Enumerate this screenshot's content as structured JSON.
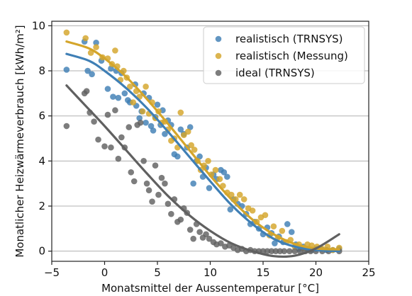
{
  "chart_data": {
    "type": "scatter",
    "xlabel": "Monatsmittel der Aussentemperatur [°C]",
    "ylabel": "Monatlicher Heizwärmeverbrauch [kWh/m²]",
    "xlim": [
      -5,
      25
    ],
    "ylim": [
      -0.45,
      10.2
    ],
    "x_ticks": [
      -5,
      0,
      5,
      10,
      15,
      20,
      25
    ],
    "x_tick_labels": [
      "−5",
      "0",
      "5",
      "10",
      "15",
      "20",
      "25"
    ],
    "y_ticks": [
      0,
      2,
      4,
      6,
      8,
      10
    ],
    "y_tick_labels": [
      "0",
      "2",
      "4",
      "6",
      "8",
      "10"
    ],
    "grid": "horizontal",
    "legend_position": "top-right",
    "series": [
      {
        "name": "realistisch (TRNSYS)",
        "color": "#3f7fb5",
        "points": [
          [
            -3.6,
            8.05
          ],
          [
            -1.9,
            9.3
          ],
          [
            -1.6,
            8.0
          ],
          [
            -1.2,
            7.85
          ],
          [
            -0.8,
            9.25
          ],
          [
            -0.3,
            8.45
          ],
          [
            0.3,
            7.2
          ],
          [
            0.6,
            8.1
          ],
          [
            0.8,
            6.85
          ],
          [
            1.1,
            8.0
          ],
          [
            1.3,
            6.8
          ],
          [
            1.6,
            7.9
          ],
          [
            1.9,
            7.0
          ],
          [
            2.2,
            6.7
          ],
          [
            2.4,
            6.6
          ],
          [
            2.9,
            7.4
          ],
          [
            3.0,
            6.45
          ],
          [
            3.3,
            5.9
          ],
          [
            3.5,
            6.2
          ],
          [
            3.7,
            7.0
          ],
          [
            3.9,
            5.7
          ],
          [
            4.2,
            6.8
          ],
          [
            4.4,
            5.55
          ],
          [
            4.6,
            5.35
          ],
          [
            4.8,
            5.95
          ],
          [
            5.0,
            6.5
          ],
          [
            5.3,
            5.6
          ],
          [
            5.5,
            6.25
          ],
          [
            5.7,
            5.2
          ],
          [
            6.0,
            5.8
          ],
          [
            6.3,
            5.6
          ],
          [
            6.6,
            4.3
          ],
          [
            6.9,
            4.2
          ],
          [
            7.2,
            5.4
          ],
          [
            7.5,
            5.2
          ],
          [
            7.8,
            4.6
          ],
          [
            8.1,
            5.5
          ],
          [
            8.4,
            3.0
          ],
          [
            8.7,
            4.0
          ],
          [
            9.0,
            4.2
          ],
          [
            9.3,
            3.3
          ],
          [
            9.6,
            3.7
          ],
          [
            9.9,
            2.8
          ],
          [
            10.3,
            3.4
          ],
          [
            10.6,
            3.2
          ],
          [
            11.0,
            3.6
          ],
          [
            11.3,
            3.5
          ],
          [
            11.6,
            3.3
          ],
          [
            11.9,
            1.85
          ],
          [
            12.2,
            2.3
          ],
          [
            12.6,
            2.1
          ],
          [
            13.0,
            2.0
          ],
          [
            13.4,
            1.65
          ],
          [
            13.8,
            1.2
          ],
          [
            14.2,
            1.3
          ],
          [
            14.6,
            1.0
          ],
          [
            15.0,
            0.75
          ],
          [
            15.4,
            1.05
          ],
          [
            15.8,
            0.8
          ],
          [
            16.1,
            0.35
          ],
          [
            16.5,
            0.65
          ],
          [
            16.9,
            0.4
          ],
          [
            17.3,
            1.2
          ],
          [
            17.7,
            0.85
          ],
          [
            18.1,
            0.3
          ],
          [
            18.4,
            0.1
          ],
          [
            18.8,
            0.2
          ],
          [
            19.2,
            0.1
          ],
          [
            19.6,
            0.05
          ],
          [
            20.0,
            0.1
          ],
          [
            20.5,
            0.1
          ],
          [
            21.0,
            0.05
          ],
          [
            21.6,
            0.05
          ],
          [
            22.2,
            0.1
          ]
        ],
        "fit": [
          [
            -3.6,
            8.75
          ],
          [
            -1.5,
            8.45
          ],
          [
            0,
            8.0
          ],
          [
            2,
            7.25
          ],
          [
            4,
            6.35
          ],
          [
            6,
            5.3
          ],
          [
            8,
            4.2
          ],
          [
            10,
            3.1
          ],
          [
            12,
            2.05
          ],
          [
            14,
            1.2
          ],
          [
            16,
            0.55
          ],
          [
            18,
            0.2
          ],
          [
            20,
            0.05
          ],
          [
            22.2,
            0.0
          ]
        ]
      },
      {
        "name": "realistisch (Messung)",
        "color": "#d4a52a",
        "points": [
          [
            -3.6,
            9.7
          ],
          [
            -1.8,
            9.45
          ],
          [
            -1.3,
            8.8
          ],
          [
            -0.8,
            9.05
          ],
          [
            -0.2,
            8.6
          ],
          [
            0.3,
            8.55
          ],
          [
            0.7,
            8.3
          ],
          [
            1.0,
            8.9
          ],
          [
            1.2,
            8.2
          ],
          [
            1.5,
            7.6
          ],
          [
            1.8,
            8.0
          ],
          [
            2.1,
            7.7
          ],
          [
            2.4,
            7.3
          ],
          [
            2.7,
            6.6
          ],
          [
            3.0,
            7.1
          ],
          [
            3.3,
            6.85
          ],
          [
            3.6,
            6.2
          ],
          [
            3.9,
            7.3
          ],
          [
            4.2,
            6.1
          ],
          [
            4.5,
            6.6
          ],
          [
            4.8,
            5.9
          ],
          [
            5.1,
            6.2
          ],
          [
            5.4,
            5.7
          ],
          [
            5.7,
            5.75
          ],
          [
            6.0,
            5.4
          ],
          [
            6.3,
            4.9
          ],
          [
            6.6,
            5.0
          ],
          [
            6.9,
            4.6
          ],
          [
            7.2,
            6.15
          ],
          [
            7.5,
            5.15
          ],
          [
            7.9,
            5.3
          ],
          [
            8.2,
            4.7
          ],
          [
            8.5,
            4.5
          ],
          [
            8.8,
            4.0
          ],
          [
            9.1,
            3.6
          ],
          [
            9.4,
            3.8
          ],
          [
            9.8,
            4.0
          ],
          [
            10.1,
            3.4
          ],
          [
            10.5,
            3.6
          ],
          [
            10.9,
            3.2
          ],
          [
            11.2,
            2.9
          ],
          [
            11.6,
            2.6
          ],
          [
            12.0,
            2.5
          ],
          [
            12.4,
            2.3
          ],
          [
            12.8,
            2.5
          ],
          [
            13.2,
            2.3
          ],
          [
            13.6,
            1.9
          ],
          [
            14.0,
            1.8
          ],
          [
            14.4,
            1.3
          ],
          [
            14.8,
            1.5
          ],
          [
            15.2,
            1.6
          ],
          [
            15.6,
            0.7
          ],
          [
            16.0,
            1.1
          ],
          [
            16.4,
            0.6
          ],
          [
            16.8,
            0.9
          ],
          [
            17.2,
            0.4
          ],
          [
            17.6,
            0.5
          ],
          [
            18.0,
            0.2
          ],
          [
            18.4,
            0.3
          ],
          [
            18.8,
            0.15
          ],
          [
            19.2,
            0.3
          ],
          [
            19.6,
            0.25
          ],
          [
            20.1,
            0.2
          ],
          [
            20.6,
            0.1
          ],
          [
            21.1,
            0.2
          ],
          [
            21.6,
            0.05
          ],
          [
            22.2,
            0.15
          ]
        ],
        "fit": [
          [
            -3.6,
            9.3
          ],
          [
            -1.5,
            9.0
          ],
          [
            0,
            8.55
          ],
          [
            2,
            7.75
          ],
          [
            4,
            6.75
          ],
          [
            6,
            5.65
          ],
          [
            8,
            4.5
          ],
          [
            10,
            3.35
          ],
          [
            12,
            2.3
          ],
          [
            14,
            1.4
          ],
          [
            16,
            0.75
          ],
          [
            18,
            0.32
          ],
          [
            20,
            0.12
          ],
          [
            22.2,
            0.08
          ]
        ]
      },
      {
        "name": "ideal (TRNSYS)",
        "color": "#606060",
        "points": [
          [
            -3.6,
            5.55
          ],
          [
            -1.9,
            7.0
          ],
          [
            -1.7,
            7.1
          ],
          [
            -1.4,
            6.15
          ],
          [
            -1.0,
            5.75
          ],
          [
            -0.6,
            4.95
          ],
          [
            0.0,
            4.65
          ],
          [
            0.3,
            6.05
          ],
          [
            0.6,
            4.6
          ],
          [
            1.0,
            6.25
          ],
          [
            1.3,
            4.1
          ],
          [
            1.6,
            5.05
          ],
          [
            1.9,
            4.6
          ],
          [
            2.3,
            5.5
          ],
          [
            2.5,
            3.5
          ],
          [
            2.8,
            3.1
          ],
          [
            3.1,
            5.6
          ],
          [
            3.4,
            5.7
          ],
          [
            3.7,
            4.0
          ],
          [
            4.0,
            3.0
          ],
          [
            4.2,
            2.7
          ],
          [
            4.5,
            2.2
          ],
          [
            4.8,
            3.8
          ],
          [
            5.1,
            2.5
          ],
          [
            5.4,
            3.25
          ],
          [
            5.7,
            3.0
          ],
          [
            6.0,
            2.1
          ],
          [
            6.3,
            1.65
          ],
          [
            6.6,
            2.3
          ],
          [
            6.9,
            1.3
          ],
          [
            7.2,
            1.4
          ],
          [
            7.5,
            1.9
          ],
          [
            7.8,
            1.7
          ],
          [
            8.1,
            0.95
          ],
          [
            8.4,
            0.55
          ],
          [
            8.7,
            1.2
          ],
          [
            9.0,
            0.85
          ],
          [
            9.3,
            0.6
          ],
          [
            9.6,
            0.75
          ],
          [
            9.9,
            0.55
          ],
          [
            10.3,
            0.4
          ],
          [
            10.6,
            0.3
          ],
          [
            11.0,
            0.35
          ],
          [
            11.4,
            0.2
          ],
          [
            11.8,
            0.25
          ],
          [
            12.2,
            0.15
          ],
          [
            12.6,
            0.05
          ],
          [
            13.0,
            0.1
          ],
          [
            13.4,
            0.0
          ],
          [
            13.8,
            0.05
          ],
          [
            14.2,
            0.0
          ],
          [
            14.6,
            0.0
          ],
          [
            15.0,
            0.0
          ],
          [
            15.4,
            0.0
          ],
          [
            15.8,
            0.0
          ],
          [
            16.2,
            0.0
          ],
          [
            16.6,
            0.0
          ],
          [
            17.0,
            0.0
          ],
          [
            17.5,
            0.0
          ],
          [
            18.0,
            0.0
          ],
          [
            18.5,
            0.0
          ],
          [
            19.0,
            0.0
          ],
          [
            19.5,
            0.0
          ],
          [
            20.0,
            0.0
          ],
          [
            20.6,
            0.0
          ],
          [
            21.2,
            0.0
          ],
          [
            22.2,
            0.0
          ]
        ],
        "fit": [
          [
            -3.6,
            7.35
          ],
          [
            -2,
            6.55
          ],
          [
            0,
            5.55
          ],
          [
            2,
            4.5
          ],
          [
            4,
            3.45
          ],
          [
            6,
            2.45
          ],
          [
            8,
            1.6
          ],
          [
            10,
            0.9
          ],
          [
            12,
            0.35
          ],
          [
            14,
            0.0
          ],
          [
            16,
            -0.22
          ],
          [
            18,
            -0.2
          ],
          [
            20,
            0.12
          ],
          [
            22.2,
            0.75
          ]
        ]
      }
    ]
  }
}
